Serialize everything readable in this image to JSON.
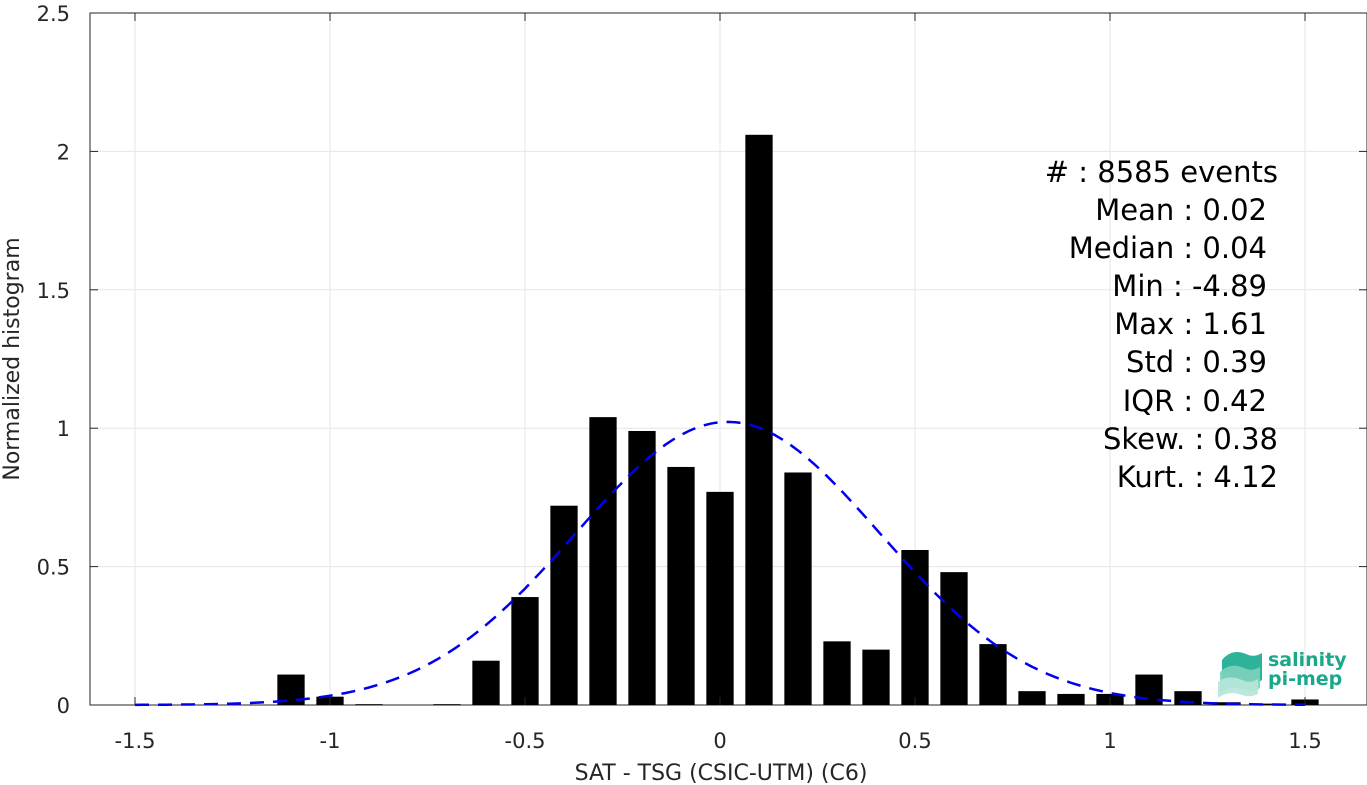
{
  "chart_data": {
    "type": "bar",
    "xlabel": "SAT - TSG (CSIC-UTM) (C6)",
    "ylabel": "Normalized histogram",
    "xlim": [
      -1.6,
      1.6
    ],
    "ylim": [
      0,
      2.5
    ],
    "grid": true,
    "xticks": [
      -1.5,
      -1,
      -0.5,
      0,
      0.5,
      1,
      1.5
    ],
    "xtick_labels": [
      "-1.5",
      "-1",
      "-0.5",
      "0",
      "0.5",
      "1",
      "1.5"
    ],
    "yticks": [
      0,
      0.5,
      1,
      1.5,
      2,
      2.5
    ],
    "ytick_labels": [
      "0",
      "0.5",
      "1",
      "1.5",
      "2",
      "2.5"
    ],
    "bar_width": 0.07,
    "bar_color": "#000000",
    "histogram": {
      "x": [
        -1.5,
        -1.4,
        -1.3,
        -1.2,
        -1.1,
        -1.0,
        -0.9,
        -0.8,
        -0.7,
        -0.6,
        -0.5,
        -0.4,
        -0.3,
        -0.2,
        -0.1,
        0.0,
        0.1,
        0.2,
        0.3,
        0.4,
        0.5,
        0.6,
        0.7,
        0.8,
        0.9,
        1.0,
        1.1,
        1.2,
        1.3,
        1.4,
        1.5
      ],
      "values": [
        0.0,
        0.0,
        0.0,
        0.0,
        0.11,
        0.03,
        0.003,
        0.0,
        0.003,
        0.16,
        0.39,
        0.72,
        1.04,
        0.99,
        0.86,
        0.77,
        2.06,
        0.84,
        0.23,
        0.2,
        0.56,
        0.48,
        0.22,
        0.05,
        0.04,
        0.04,
        0.11,
        0.05,
        0.01,
        0.005,
        0.02
      ]
    },
    "fit_curve": {
      "style": "dashed",
      "color": "#0000ee",
      "mean": 0.02,
      "std": 0.39,
      "x_range": [
        -1.5,
        1.5
      ]
    }
  },
  "stats": {
    "count": "#  : 8585 events",
    "mean": "Mean : 0.02",
    "median": "Median : 0.04",
    "min": "Min : -4.89",
    "max": "Max : 1.61",
    "std": "Std : 0.39",
    "iqr": "IQR : 0.42",
    "skew": "Skew. : 0.38",
    "kurt": "Kurt. : 4.12"
  },
  "logo": {
    "line1": "salinity",
    "line2": "pi-mep",
    "color": "#1aa88a"
  }
}
